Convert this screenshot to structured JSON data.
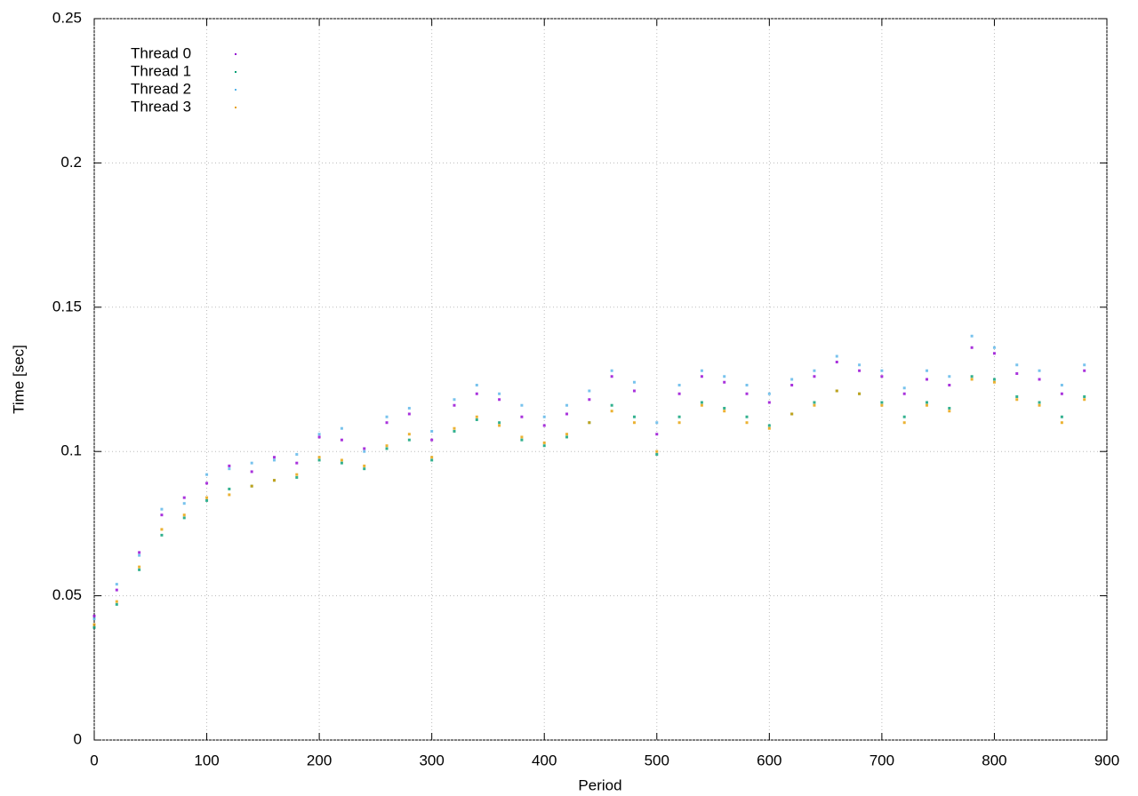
{
  "chart_data": {
    "type": "scatter",
    "xlabel": "Period",
    "ylabel": "Time [sec]",
    "xlim": [
      0,
      900
    ],
    "ylim": [
      0,
      0.25
    ],
    "xticks": [
      0,
      100,
      200,
      300,
      400,
      500,
      600,
      700,
      800,
      900
    ],
    "yticks": [
      0,
      0.05,
      0.1,
      0.15,
      0.2,
      0.25
    ],
    "grid": true,
    "legend": "top-left",
    "x": [
      0,
      20,
      40,
      60,
      80,
      100,
      120,
      140,
      160,
      180,
      200,
      220,
      240,
      260,
      280,
      300,
      320,
      340,
      360,
      380,
      400,
      420,
      440,
      460,
      480,
      500,
      520,
      540,
      560,
      580,
      600,
      620,
      640,
      660,
      680,
      700,
      720,
      740,
      760,
      780,
      800,
      820,
      840,
      860,
      880
    ],
    "series": [
      {
        "name": "Thread 0",
        "color": "#9400d3",
        "values": [
          0.043,
          0.052,
          0.065,
          0.078,
          0.084,
          0.089,
          0.095,
          0.093,
          0.098,
          0.096,
          0.105,
          0.104,
          0.101,
          0.11,
          0.113,
          0.104,
          0.116,
          0.12,
          0.118,
          0.112,
          0.109,
          0.113,
          0.118,
          0.126,
          0.121,
          0.106,
          0.12,
          0.126,
          0.124,
          0.12,
          0.117,
          0.123,
          0.126,
          0.131,
          0.128,
          0.126,
          0.12,
          0.125,
          0.123,
          0.136,
          0.134,
          0.127,
          0.125,
          0.12,
          0.128
        ]
      },
      {
        "name": "Thread 1",
        "color": "#009e73",
        "values": [
          0.039,
          0.047,
          0.059,
          0.071,
          0.077,
          0.083,
          0.087,
          0.088,
          0.09,
          0.091,
          0.097,
          0.096,
          0.094,
          0.101,
          0.104,
          0.097,
          0.107,
          0.111,
          0.11,
          0.104,
          0.102,
          0.105,
          0.11,
          0.116,
          0.112,
          0.099,
          0.112,
          0.117,
          0.115,
          0.112,
          0.109,
          0.113,
          0.117,
          0.121,
          0.12,
          0.117,
          0.112,
          0.117,
          0.115,
          0.126,
          0.125,
          0.119,
          0.117,
          0.112,
          0.119
        ]
      },
      {
        "name": "Thread 2",
        "color": "#56b4e9",
        "values": [
          0.042,
          0.054,
          0.064,
          0.08,
          0.082,
          0.092,
          0.094,
          0.096,
          0.097,
          0.099,
          0.106,
          0.108,
          0.1,
          0.112,
          0.115,
          0.107,
          0.118,
          0.123,
          0.12,
          0.116,
          0.112,
          0.116,
          0.121,
          0.128,
          0.124,
          0.11,
          0.123,
          0.128,
          0.126,
          0.123,
          0.12,
          0.125,
          0.128,
          0.133,
          0.13,
          0.128,
          0.122,
          0.128,
          0.126,
          0.14,
          0.136,
          0.13,
          0.128,
          0.123,
          0.13
        ]
      },
      {
        "name": "Thread 3",
        "color": "#e69f00",
        "values": [
          0.04,
          0.048,
          0.06,
          0.073,
          0.078,
          0.084,
          0.085,
          0.088,
          0.09,
          0.092,
          0.098,
          0.097,
          0.095,
          0.102,
          0.106,
          0.098,
          0.108,
          0.112,
          0.109,
          0.105,
          0.103,
          0.106,
          0.11,
          0.114,
          0.11,
          0.1,
          0.11,
          0.116,
          0.114,
          0.11,
          0.108,
          0.113,
          0.116,
          0.121,
          0.12,
          0.116,
          0.11,
          0.116,
          0.114,
          0.125,
          0.124,
          0.118,
          0.116,
          0.11,
          0.118
        ]
      }
    ]
  }
}
